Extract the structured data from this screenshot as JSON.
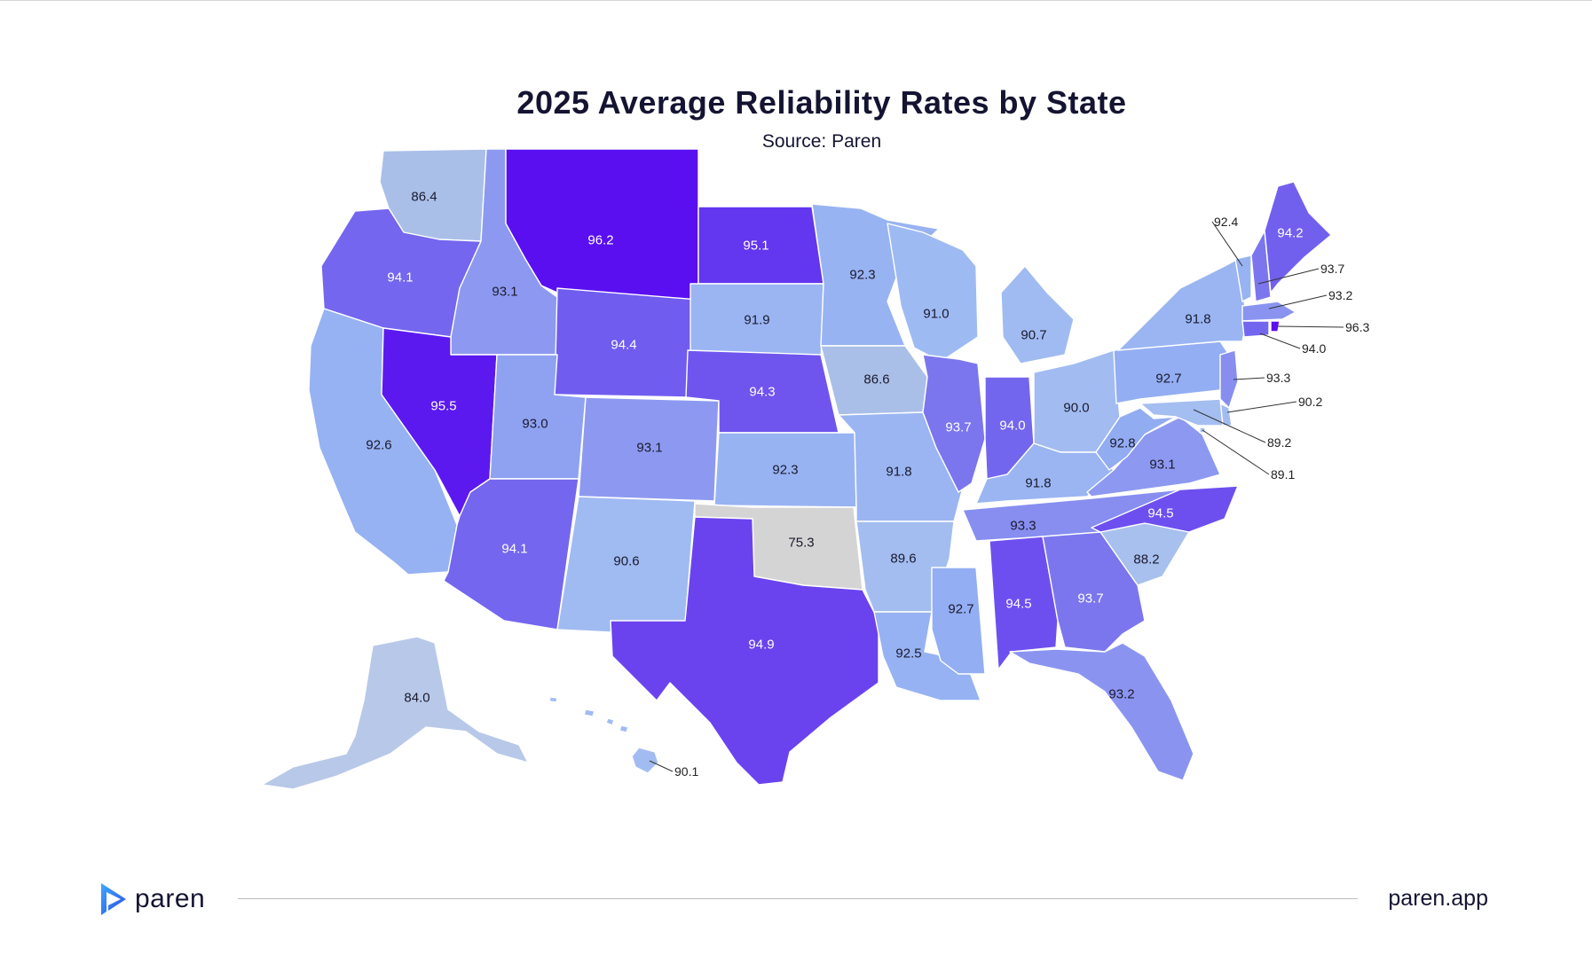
{
  "header": {
    "title": "2025 Average Reliability Rates by State",
    "subtitle": "Source: Paren"
  },
  "legend_scale": {
    "low_color": "#d4d4d4",
    "mid_color": "#9db6f0",
    "high_color": "#5b0ff0"
  },
  "states": [
    {
      "code": "WA",
      "value": "86.4",
      "color": "#aabfe8"
    },
    {
      "code": "OR",
      "value": "94.1",
      "color": "#7466ee"
    },
    {
      "code": "CA",
      "value": "92.6",
      "color": "#96b2f2"
    },
    {
      "code": "ID",
      "value": "93.1",
      "color": "#8d99f0"
    },
    {
      "code": "NV",
      "value": "95.5",
      "color": "#5b19f0"
    },
    {
      "code": "MT",
      "value": "96.2",
      "color": "#5a0ff0"
    },
    {
      "code": "WY",
      "value": "94.4",
      "color": "#705cef"
    },
    {
      "code": "UT",
      "value": "93.0",
      "color": "#8fa2f1"
    },
    {
      "code": "AZ",
      "value": "94.1",
      "color": "#7466ee"
    },
    {
      "code": "CO",
      "value": "93.1",
      "color": "#8d99f0"
    },
    {
      "code": "NM",
      "value": "90.6",
      "color": "#a0baf2"
    },
    {
      "code": "ND",
      "value": "95.1",
      "color": "#6336ef"
    },
    {
      "code": "SD",
      "value": "91.9",
      "color": "#9ab5f2"
    },
    {
      "code": "NE",
      "value": "94.3",
      "color": "#6f55ee"
    },
    {
      "code": "KS",
      "value": "92.3",
      "color": "#98b3f2"
    },
    {
      "code": "OK",
      "value": "75.3",
      "color": "#d4d4d4"
    },
    {
      "code": "TX",
      "value": "94.9",
      "color": "#6a43ef"
    },
    {
      "code": "MN",
      "value": "92.3",
      "color": "#98b3f2"
    },
    {
      "code": "IA",
      "value": "86.6",
      "color": "#aabfe8"
    },
    {
      "code": "MO",
      "value": "91.8",
      "color": "#9ab5f2"
    },
    {
      "code": "AR",
      "value": "89.6",
      "color": "#a3bdf1"
    },
    {
      "code": "LA",
      "value": "92.5",
      "color": "#97b2f2"
    },
    {
      "code": "WI",
      "value": "91.0",
      "color": "#9ebaf2"
    },
    {
      "code": "IL",
      "value": "93.7",
      "color": "#7b76ee"
    },
    {
      "code": "MI",
      "value": "90.7",
      "color": "#a0baf2"
    },
    {
      "code": "IN",
      "value": "94.0",
      "color": "#7366ee"
    },
    {
      "code": "OH",
      "value": "90.0",
      "color": "#a2bcf2"
    },
    {
      "code": "KY",
      "value": "91.8",
      "color": "#9ab5f2"
    },
    {
      "code": "TN",
      "value": "93.3",
      "color": "#878ef0"
    },
    {
      "code": "MS",
      "value": "92.7",
      "color": "#93aef2"
    },
    {
      "code": "AL",
      "value": "94.5",
      "color": "#6d4ff0"
    },
    {
      "code": "GA",
      "value": "93.7",
      "color": "#7b76ee"
    },
    {
      "code": "FL",
      "value": "93.2",
      "color": "#8a94f0"
    },
    {
      "code": "SC",
      "value": "88.2",
      "color": "#a8c0ee"
    },
    {
      "code": "NC",
      "value": "94.5",
      "color": "#6d4ff0"
    },
    {
      "code": "VA",
      "value": "93.1",
      "color": "#8d99f0"
    },
    {
      "code": "WV",
      "value": "92.8",
      "color": "#92acf2"
    },
    {
      "code": "PA",
      "value": "92.7",
      "color": "#93aef2"
    },
    {
      "code": "NY",
      "value": "91.8",
      "color": "#9ab5f2"
    },
    {
      "code": "VT",
      "value": "92.4",
      "color": "#98b3f2"
    },
    {
      "code": "NH",
      "value": "93.7",
      "color": "#7b76ee"
    },
    {
      "code": "ME",
      "value": "94.2",
      "color": "#7160ee"
    },
    {
      "code": "MA",
      "value": "93.2",
      "color": "#8a94f0"
    },
    {
      "code": "RI",
      "value": "96.3",
      "color": "#5a0ff0"
    },
    {
      "code": "CT",
      "value": "94.0",
      "color": "#7366ee"
    },
    {
      "code": "NJ",
      "value": "93.3",
      "color": "#878ef0"
    },
    {
      "code": "DE",
      "value": "90.2",
      "color": "#a2bcf2"
    },
    {
      "code": "MD",
      "value": "89.2",
      "color": "#a5bef1"
    },
    {
      "code": "DC",
      "value": "89.1",
      "color": "#a5bef1"
    },
    {
      "code": "AK",
      "value": "84.0",
      "color": "#b8c8e8"
    },
    {
      "code": "HI",
      "value": "90.1",
      "color": "#a2bcf2"
    }
  ],
  "footer": {
    "brand": "paren",
    "website": "paren.app"
  }
}
